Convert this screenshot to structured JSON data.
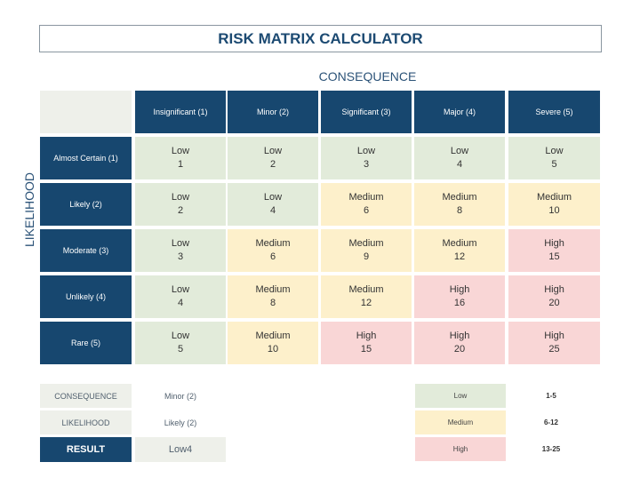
{
  "title": "RISK MATRIX CALCULATOR",
  "axis_consequence": "CONSEQUENCE",
  "axis_likelihood": "LIKELIHOOD",
  "columns": [
    "Insignificant (1)",
    "Minor (2)",
    "Significant (3)",
    "Major (4)",
    "Severe (5)"
  ],
  "rows": [
    "Almost Certain (1)",
    "Likely (2)",
    "Moderate (3)",
    "Unlikely (4)",
    "Rare (5)"
  ],
  "matrix": [
    [
      [
        "Low",
        "1"
      ],
      [
        "Low",
        "2"
      ],
      [
        "Low",
        "3"
      ],
      [
        "Low",
        "4"
      ],
      [
        "Low",
        "5"
      ]
    ],
    [
      [
        "Low",
        "2"
      ],
      [
        "Low",
        "4"
      ],
      [
        "Medium",
        "6"
      ],
      [
        "Medium",
        "8"
      ],
      [
        "Medium",
        "10"
      ]
    ],
    [
      [
        "Low",
        "3"
      ],
      [
        "Medium",
        "6"
      ],
      [
        "Medium",
        "9"
      ],
      [
        "Medium",
        "12"
      ],
      [
        "High",
        "15"
      ]
    ],
    [
      [
        "Low",
        "4"
      ],
      [
        "Medium",
        "8"
      ],
      [
        "Medium",
        "12"
      ],
      [
        "High",
        "16"
      ],
      [
        "High",
        "20"
      ]
    ],
    [
      [
        "Low",
        "5"
      ],
      [
        "Medium",
        "10"
      ],
      [
        "High",
        "15"
      ],
      [
        "High",
        "20"
      ],
      [
        "High",
        "25"
      ]
    ]
  ],
  "calc": {
    "consequence_label": "CONSEQUENCE",
    "consequence_value": "Minor (2)",
    "likelihood_label": "LIKELIHOOD",
    "likelihood_value": "Likely (2)",
    "result_label": "RESULT",
    "result_value": "Low4"
  },
  "legend": [
    {
      "label": "Low",
      "range": "1-5",
      "color": "#e2ebda"
    },
    {
      "label": "Medium",
      "range": "6-12",
      "color": "#fdf0cb"
    },
    {
      "label": "High",
      "range": "13-25",
      "color": "#f9d6d6"
    }
  ],
  "colors": {
    "header": "#17476f",
    "Low": "#e2ebda",
    "Medium": "#fdf0cb",
    "High": "#f9d6d6"
  }
}
